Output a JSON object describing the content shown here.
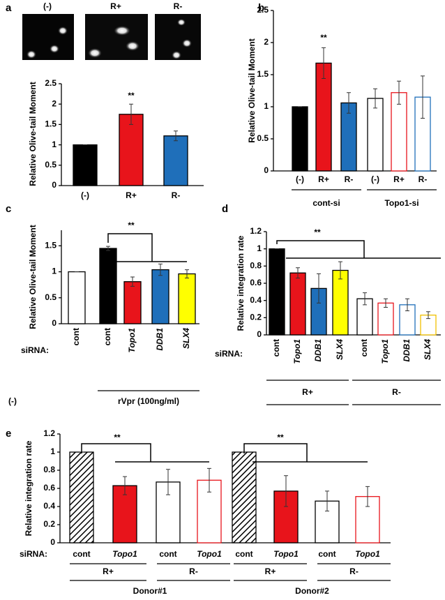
{
  "chart_data": [
    {
      "type": "bar",
      "panel": "a",
      "image_labels": [
        "(-)",
        "R+",
        "R-"
      ],
      "ylabel": "Relative Olive-tail Moment",
      "categories": [
        "(-)",
        "R+",
        "R-"
      ],
      "values": [
        1,
        1.75,
        1.22
      ],
      "errors": [
        0,
        0.25,
        0.12
      ],
      "colors": [
        "#000000",
        "#e8141b",
        "#1f6fba"
      ],
      "edgecolors": [
        "#000000",
        "#000000",
        "#000000"
      ],
      "ylim": [
        0,
        2.5
      ],
      "yticks": [
        0,
        0.5,
        1,
        1.5,
        2,
        2.5
      ],
      "annotations": [
        "**"
      ]
    },
    {
      "type": "bar",
      "panel": "b",
      "ylabel": "Relative Olive-tail Moment",
      "categories": [
        "(-)",
        "R+",
        "R-",
        "(-)",
        "R+",
        "R-"
      ],
      "values": [
        1,
        1.68,
        1.06,
        1.13,
        1.22,
        1.15
      ],
      "errors": [
        0,
        0.24,
        0.16,
        0.15,
        0.18,
        0.33
      ],
      "colors": [
        "#000000",
        "#e8141b",
        "#1f6fba",
        "#ffffff",
        "#ffffff",
        "#ffffff"
      ],
      "edgecolors": [
        "#000000",
        "#000000",
        "#000000",
        "#000000",
        "#e8141b",
        "#1f6fba"
      ],
      "ylim": [
        0,
        2.5
      ],
      "yticks": [
        0,
        0.5,
        1,
        1.5,
        2,
        2.5
      ],
      "annotations": [
        "**"
      ],
      "groups": [
        "cont-si",
        "Topo1-si"
      ]
    },
    {
      "type": "bar",
      "panel": "c",
      "ylabel": "Relative Olive-tail Moment",
      "x_prefix": "siRNA:",
      "categories": [
        "cont",
        "cont",
        "Topo1",
        "DDB1",
        "SLX4"
      ],
      "values": [
        1,
        1.45,
        0.81,
        1.04,
        0.96
      ],
      "errors": [
        0,
        0.04,
        0.09,
        0.11,
        0.08
      ],
      "colors": [
        "#ffffff",
        "#000000",
        "#e8141b",
        "#1f6fba",
        "#ffff00"
      ],
      "edgecolors": [
        "#000000",
        "#000000",
        "#000000",
        "#000000",
        "#000000"
      ],
      "ylim": [
        0,
        1.8
      ],
      "yticks": [
        0,
        0.5,
        1,
        1.5
      ],
      "annotations": [
        "**"
      ],
      "groups": [
        "(-)",
        "rVpr (100ng/ml)"
      ]
    },
    {
      "type": "bar",
      "panel": "d",
      "ylabel": "Relative integration rate",
      "x_prefix": "siRNA:",
      "categories": [
        "cont",
        "Topo1",
        "DDB1",
        "SLX4",
        "cont",
        "Topo1",
        "DDB1",
        "SLX4"
      ],
      "values": [
        1,
        0.72,
        0.54,
        0.75,
        0.42,
        0.37,
        0.35,
        0.23
      ],
      "errors": [
        0,
        0.06,
        0.17,
        0.1,
        0.07,
        0.05,
        0.07,
        0.04
      ],
      "colors": [
        "#000000",
        "#e8141b",
        "#1f6fba",
        "#ffff00",
        "#ffffff",
        "#ffffff",
        "#ffffff",
        "#ffffff"
      ],
      "edgecolors": [
        "#000000",
        "#000000",
        "#000000",
        "#000000",
        "#000000",
        "#e8141b",
        "#1f6fba",
        "#f0c000"
      ],
      "ylim": [
        0,
        1.2
      ],
      "yticks": [
        0,
        0.2,
        0.4,
        0.6,
        0.8,
        1,
        1.2
      ],
      "annotations": [
        "**"
      ],
      "groups": [
        "R+",
        "R-"
      ]
    },
    {
      "type": "bar",
      "panel": "e",
      "ylabel": "Relative integration rate",
      "x_prefix": "siRNA:",
      "categories": [
        "cont",
        "Topo1",
        "cont",
        "Topo1",
        "cont",
        "Topo1",
        "cont",
        "Topo1"
      ],
      "values": [
        1,
        0.63,
        0.67,
        0.69,
        1,
        0.57,
        0.46,
        0.51
      ],
      "errors": [
        0,
        0.1,
        0.14,
        0.13,
        0,
        0.17,
        0.11,
        0.11
      ],
      "colors": [
        "#ffffff",
        "#e8141b",
        "#ffffff",
        "#ffffff",
        "#ffffff",
        "#e8141b",
        "#ffffff",
        "#ffffff"
      ],
      "edgecolors": [
        "#000000",
        "#000000",
        "#000000",
        "#e8141b",
        "#000000",
        "#000000",
        "#000000",
        "#e8141b"
      ],
      "hatched": [
        true,
        false,
        false,
        false,
        true,
        false,
        false,
        false
      ],
      "ylim": [
        0,
        1.2
      ],
      "yticks": [
        0,
        0.2,
        0.4,
        0.6,
        0.8,
        1,
        1.2
      ],
      "annotations": [
        "**",
        "**"
      ],
      "subgroups": [
        "R+",
        "R-",
        "R+",
        "R-"
      ],
      "groups": [
        "Donor#1",
        "Donor#2"
      ]
    }
  ]
}
